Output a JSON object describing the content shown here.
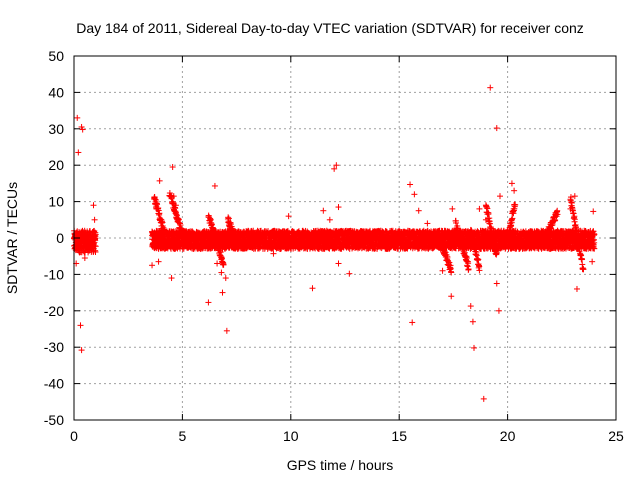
{
  "chart_data": {
    "type": "scatter",
    "title": "Day 184 of 2011, Sidereal Day-to-day VTEC variation (SDTVAR) for receiver conz",
    "xlabel": "GPS time / hours",
    "ylabel": "SDTVAR / TECUs",
    "xlim": [
      0,
      25
    ],
    "ylim": [
      -50,
      50
    ],
    "xticks": [
      0,
      5,
      10,
      15,
      20,
      25
    ],
    "yticks": [
      -50,
      -40,
      -30,
      -20,
      -10,
      0,
      10,
      20,
      30,
      40,
      50
    ],
    "xtick_labels": [
      "0",
      "5",
      "10",
      "15",
      "20",
      "25"
    ],
    "ytick_labels": [
      "-50",
      "-40",
      "-30",
      "-20",
      "-10",
      "0",
      "10",
      "20",
      "30",
      "40",
      "50"
    ],
    "grid": true,
    "marker": "+",
    "color": "#ff0000",
    "series": [
      {
        "name": "SDTVAR",
        "dense_segments": [
          {
            "x": [
              0.0,
              1.0
            ],
            "band": [
              -4,
              2
            ]
          },
          {
            "x": [
              3.6,
              24.0
            ],
            "band": [
              -3,
              2
            ]
          }
        ],
        "points": [
          {
            "x": 0.15,
            "y": 33.0
          },
          {
            "x": 0.2,
            "y": 23.5
          },
          {
            "x": 0.35,
            "y": 30.5
          },
          {
            "x": 0.4,
            "y": 29.8
          },
          {
            "x": 0.3,
            "y": -24.0
          },
          {
            "x": 0.35,
            "y": -30.8
          },
          {
            "x": 0.1,
            "y": -7.0
          },
          {
            "x": 0.5,
            "y": -5.5
          },
          {
            "x": 0.9,
            "y": 9.0
          },
          {
            "x": 0.95,
            "y": 5.0
          },
          {
            "x": 0.85,
            "y": -2.0
          },
          {
            "x": 3.6,
            "y": -7.5
          },
          {
            "x": 3.9,
            "y": -6.5
          },
          {
            "x": 3.95,
            "y": 15.7
          },
          {
            "x": 3.7,
            "y": 11.0
          },
          {
            "x": 3.8,
            "y": 8.0
          },
          {
            "x": 4.55,
            "y": 19.5
          },
          {
            "x": 4.5,
            "y": -11.0
          },
          {
            "x": 4.6,
            "y": 11.5
          },
          {
            "x": 4.7,
            "y": 9.0
          },
          {
            "x": 6.2,
            "y": -17.7
          },
          {
            "x": 6.5,
            "y": 14.3
          },
          {
            "x": 6.6,
            "y": -7.0
          },
          {
            "x": 6.8,
            "y": -9.5
          },
          {
            "x": 6.85,
            "y": -15.0
          },
          {
            "x": 7.0,
            "y": -11.0
          },
          {
            "x": 7.05,
            "y": -25.5
          },
          {
            "x": 6.3,
            "y": 5.0
          },
          {
            "x": 9.2,
            "y": -4.3
          },
          {
            "x": 9.9,
            "y": 6.0
          },
          {
            "x": 11.0,
            "y": -13.8
          },
          {
            "x": 11.5,
            "y": 7.5
          },
          {
            "x": 11.8,
            "y": 5.0
          },
          {
            "x": 12.0,
            "y": 19.0
          },
          {
            "x": 12.1,
            "y": 20.0
          },
          {
            "x": 12.2,
            "y": 8.5
          },
          {
            "x": 12.2,
            "y": -7.0
          },
          {
            "x": 12.7,
            "y": -9.8
          },
          {
            "x": 15.5,
            "y": 14.7
          },
          {
            "x": 15.7,
            "y": 12.0
          },
          {
            "x": 15.6,
            "y": -23.2
          },
          {
            "x": 15.9,
            "y": 7.5
          },
          {
            "x": 16.3,
            "y": 4.0
          },
          {
            "x": 17.0,
            "y": -9.0
          },
          {
            "x": 17.4,
            "y": -16.0
          },
          {
            "x": 17.45,
            "y": 8.0
          },
          {
            "x": 18.3,
            "y": -18.7
          },
          {
            "x": 18.4,
            "y": -23.0
          },
          {
            "x": 18.45,
            "y": -30.2
          },
          {
            "x": 18.9,
            "y": -44.2
          },
          {
            "x": 19.2,
            "y": 41.3
          },
          {
            "x": 19.5,
            "y": 30.2
          },
          {
            "x": 19.5,
            "y": -12.5
          },
          {
            "x": 19.6,
            "y": -20.0
          },
          {
            "x": 19.65,
            "y": 11.5
          },
          {
            "x": 20.2,
            "y": 15.0
          },
          {
            "x": 20.3,
            "y": 13.0
          },
          {
            "x": 23.1,
            "y": 11.5
          },
          {
            "x": 23.2,
            "y": -14.0
          },
          {
            "x": 23.95,
            "y": 7.3
          },
          {
            "x": 23.9,
            "y": -6.5
          },
          {
            "x": 22.9,
            "y": 8.0
          },
          {
            "x": 18.7,
            "y": 8.0
          },
          {
            "x": 19.0,
            "y": 5.0
          }
        ],
        "excursions": [
          {
            "x": [
              3.7,
              4.2
            ],
            "from": 11,
            "to": 1
          },
          {
            "x": [
              4.4,
              5.0
            ],
            "from": 12.5,
            "to": 1
          },
          {
            "x": [
              6.2,
              6.9
            ],
            "from": 6,
            "to": -7
          },
          {
            "x": [
              7.1,
              7.5
            ],
            "from": 5,
            "to": -1
          },
          {
            "x": [
              16.9,
              17.4
            ],
            "from": -1,
            "to": -9
          },
          {
            "x": [
              17.6,
              18.2
            ],
            "from": 4,
            "to": -8
          },
          {
            "x": [
              18.3,
              18.7
            ],
            "from": 2,
            "to": -8
          },
          {
            "x": [
              19.0,
              19.5
            ],
            "from": 9,
            "to": -5
          },
          {
            "x": [
              20.05,
              20.35
            ],
            "from": 1,
            "to": 10
          },
          {
            "x": [
              21.8,
              22.3
            ],
            "from": 1,
            "to": 7
          },
          {
            "x": [
              22.9,
              23.5
            ],
            "from": 11,
            "to": -9
          }
        ]
      }
    ]
  }
}
